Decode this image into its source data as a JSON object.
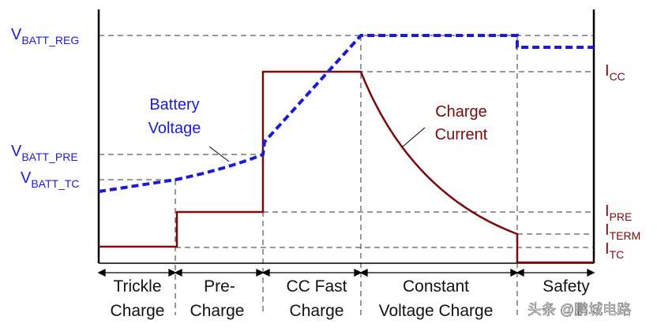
{
  "voltage_levels": {
    "vbatt_reg": {
      "main": "V",
      "sub": "BATT_REG"
    },
    "vbatt_pre": {
      "main": "V",
      "sub": "BATT_PRE"
    },
    "vbatt_tc": {
      "main": "V",
      "sub": "BATT_TC"
    }
  },
  "current_levels": {
    "icc": {
      "main": "I",
      "sub": "CC"
    },
    "ipre": {
      "main": "I",
      "sub": "PRE"
    },
    "iterm": {
      "main": "I",
      "sub": "TERM"
    },
    "itc": {
      "main": "I",
      "sub": "TC"
    }
  },
  "curve_labels": {
    "battery_voltage": [
      "Battery",
      "Voltage"
    ],
    "charge_current": [
      "Charge",
      "Current"
    ]
  },
  "phases": {
    "trickle": [
      "Trickle",
      "Charge"
    ],
    "pre": [
      "Pre-",
      "Charge"
    ],
    "cc_fast": [
      "CC Fast",
      "Charge"
    ],
    "constant": [
      "Constant",
      "Voltage Charge"
    ],
    "safety": [
      "Safety",
      ""
    ]
  },
  "watermark": "头条 @鹏城电路",
  "colors": {
    "voltage": "#1a1adb",
    "current": "#7a0a0a",
    "axis": "#000000",
    "guide": "#333333"
  }
}
